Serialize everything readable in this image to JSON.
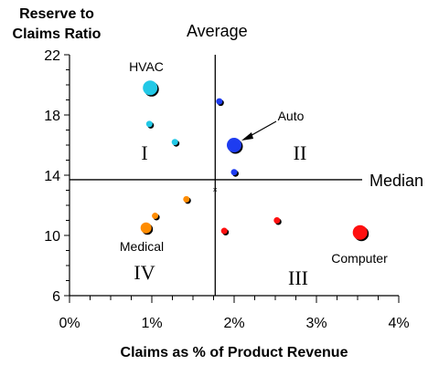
{
  "chart_data": {
    "type": "scatter",
    "ylabel": "Reserve to Claims Ratio",
    "xlabel": "Claims as % of Product Revenue",
    "xlim": [
      0,
      4
    ],
    "ylim": [
      6,
      22
    ],
    "x_ticks": [
      "0%",
      "1%",
      "2%",
      "3%",
      "4%"
    ],
    "y_ticks": [
      "6",
      "10",
      "14",
      "18",
      "22"
    ],
    "reference_lines": {
      "vertical": {
        "label": "Average",
        "x": 1.77
      },
      "horizontal": {
        "label": "Median",
        "y": 13.7
      }
    },
    "quadrant_labels": [
      "I",
      "II",
      "III",
      "IV"
    ],
    "point_labels": [
      "HVAC",
      "Auto",
      "Medical",
      "Computer"
    ],
    "colors": {
      "light_blue": "#22c8e6",
      "blue": "#1e3cf0",
      "orange": "#ff8c00",
      "red": "#ff1010"
    },
    "points": [
      {
        "label": "HVAC",
        "x": 0.98,
        "y": 19.8,
        "size": "large",
        "color": "light_blue"
      },
      {
        "x": 0.97,
        "y": 17.4,
        "size": "small",
        "color": "light_blue"
      },
      {
        "x": 1.28,
        "y": 16.2,
        "size": "small",
        "color": "light_blue"
      },
      {
        "x": 1.82,
        "y": 18.9,
        "size": "small",
        "color": "blue"
      },
      {
        "label": "Auto",
        "x": 2.0,
        "y": 16.0,
        "size": "large",
        "color": "blue"
      },
      {
        "x": 2.0,
        "y": 14.2,
        "size": "small",
        "color": "blue"
      },
      {
        "x": 1.42,
        "y": 12.4,
        "size": "small",
        "color": "orange"
      },
      {
        "x": 1.04,
        "y": 11.3,
        "size": "small",
        "color": "orange"
      },
      {
        "label": "Medical",
        "x": 0.93,
        "y": 10.5,
        "size": "medium",
        "color": "orange"
      },
      {
        "x": 1.88,
        "y": 10.3,
        "size": "small",
        "color": "red"
      },
      {
        "x": 2.52,
        "y": 11.0,
        "size": "small",
        "color": "red"
      },
      {
        "label": "Computer",
        "x": 3.53,
        "y": 10.2,
        "size": "large",
        "color": "red"
      }
    ]
  }
}
